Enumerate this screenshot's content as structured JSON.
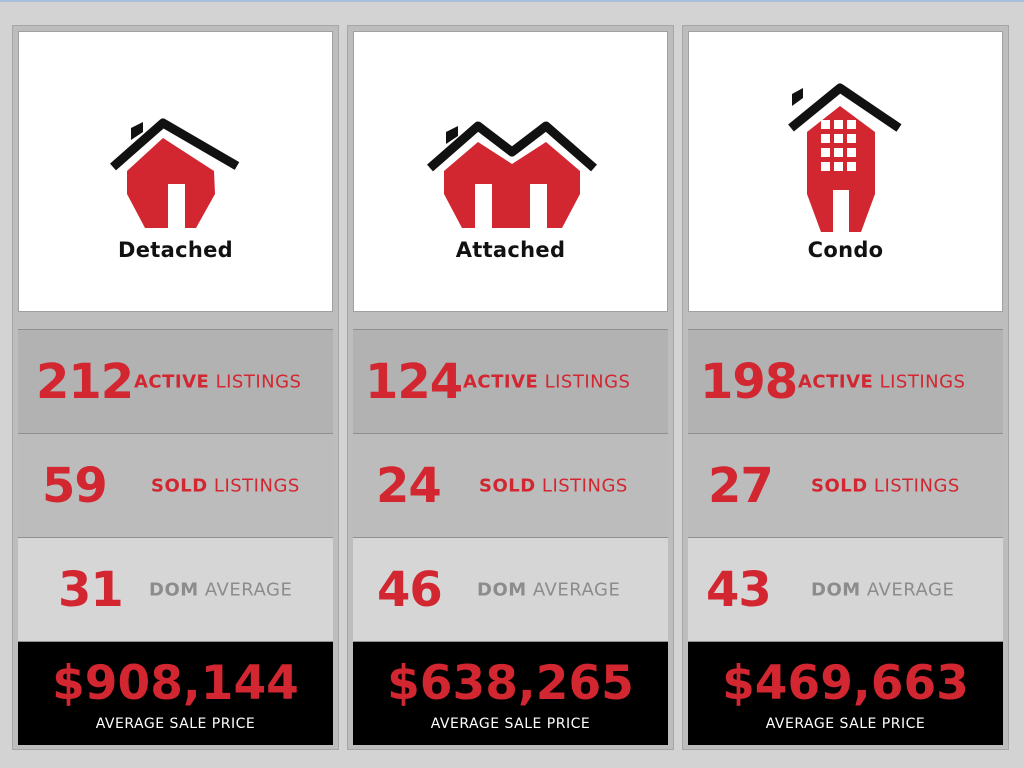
{
  "accent_color": "#d22630",
  "cards": [
    {
      "type": "Detached",
      "icon": "detached-house-icon",
      "active": {
        "count": "212",
        "label_bold": "ACTIVE",
        "label_rest": " LISTINGS"
      },
      "sold": {
        "count": "59",
        "label_bold": "SOLD",
        "label_rest": " LISTINGS"
      },
      "dom": {
        "count": "31",
        "label_bold": "DOM",
        "label_rest": " AVERAGE"
      },
      "price": {
        "value": "$908,144",
        "label": "AVERAGE SALE PRICE"
      }
    },
    {
      "type": "Attached",
      "icon": "attached-house-icon",
      "active": {
        "count": "124",
        "label_bold": "ACTIVE",
        "label_rest": " LISTINGS"
      },
      "sold": {
        "count": "24",
        "label_bold": "SOLD",
        "label_rest": " LISTINGS"
      },
      "dom": {
        "count": "46",
        "label_bold": "DOM",
        "label_rest": " AVERAGE"
      },
      "price": {
        "value": "$638,265",
        "label": "AVERAGE SALE PRICE"
      }
    },
    {
      "type": "Condo",
      "icon": "condo-building-icon",
      "active": {
        "count": "198",
        "label_bold": "ACTIVE",
        "label_rest": " LISTINGS"
      },
      "sold": {
        "count": "27",
        "label_bold": "SOLD",
        "label_rest": " LISTINGS"
      },
      "dom": {
        "count": "43",
        "label_bold": "DOM",
        "label_rest": " AVERAGE"
      },
      "price": {
        "value": "$469,663",
        "label": "AVERAGE SALE PRICE"
      }
    }
  ]
}
